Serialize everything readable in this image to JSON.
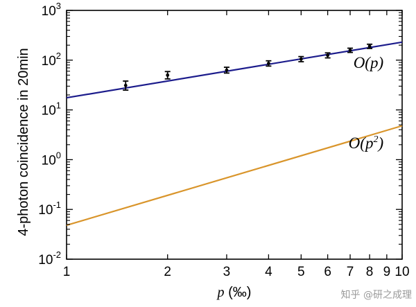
{
  "chart_data": {
    "type": "line",
    "xscale": "log",
    "yscale": "log",
    "xlim": [
      1,
      10
    ],
    "ylim": [
      0.01,
      1000
    ],
    "xlabel": {
      "var": "p",
      "unit": "(‰)"
    },
    "ylabel": "4-photon coincidence in 20min",
    "x_ticks": [
      {
        "value": 1,
        "label": "1"
      },
      {
        "value": 2,
        "label": "2"
      },
      {
        "value": 3,
        "label": "3"
      },
      {
        "value": 4,
        "label": "4"
      },
      {
        "value": 5,
        "label": "5"
      },
      {
        "value": 6,
        "label": "6"
      },
      {
        "value": 7,
        "label": "7"
      },
      {
        "value": 8,
        "label": "8"
      },
      {
        "value": 9,
        "label": "9"
      },
      {
        "value": 10,
        "label": "10"
      }
    ],
    "y_ticks": [
      {
        "value": 0.01,
        "base": "10",
        "exp": "-2"
      },
      {
        "value": 0.1,
        "base": "10",
        "exp": "-1"
      },
      {
        "value": 1,
        "base": "10",
        "exp": "0"
      },
      {
        "value": 10,
        "base": "10",
        "exp": "1"
      },
      {
        "value": 100,
        "base": "10",
        "exp": "2"
      },
      {
        "value": 1000,
        "base": "10",
        "exp": "3"
      }
    ],
    "series": [
      {
        "type": "line",
        "color": "#1c1c8c",
        "points": [
          [
            1,
            17.5
          ],
          [
            10,
            230
          ]
        ]
      },
      {
        "type": "line",
        "color": "#d9952b",
        "points": [
          [
            1,
            0.048
          ],
          [
            10,
            4.8
          ]
        ]
      },
      {
        "type": "errorbar",
        "color": "#000000",
        "points": [
          {
            "x": 1.5,
            "y": 31,
            "err_low": 6,
            "err_high": 7
          },
          {
            "x": 2.0,
            "y": 50,
            "err_low": 8,
            "err_high": 9
          },
          {
            "x": 3.0,
            "y": 63,
            "err_low": 8,
            "err_high": 9
          },
          {
            "x": 4.0,
            "y": 86,
            "err_low": 10,
            "err_high": 11
          },
          {
            "x": 5.0,
            "y": 105,
            "err_low": 12,
            "err_high": 13
          },
          {
            "x": 6.0,
            "y": 125,
            "err_low": 14,
            "err_high": 15
          },
          {
            "x": 7.0,
            "y": 158,
            "err_low": 15,
            "err_high": 16
          },
          {
            "x": 8.0,
            "y": 190,
            "err_low": 18,
            "err_high": 19
          }
        ]
      }
    ],
    "annotations": [
      {
        "text": "O(p)",
        "base": "O(p)",
        "sup": "",
        "tail": "",
        "x": 8.8,
        "y": 70,
        "anchor": "end"
      },
      {
        "text": "O(p²)",
        "base": "O(p",
        "sup": "2",
        "tail": ")",
        "x": 8.8,
        "y": 1.7,
        "anchor": "end"
      }
    ],
    "grid": false,
    "legend": "none"
  },
  "watermark": "知乎 @研之成理"
}
